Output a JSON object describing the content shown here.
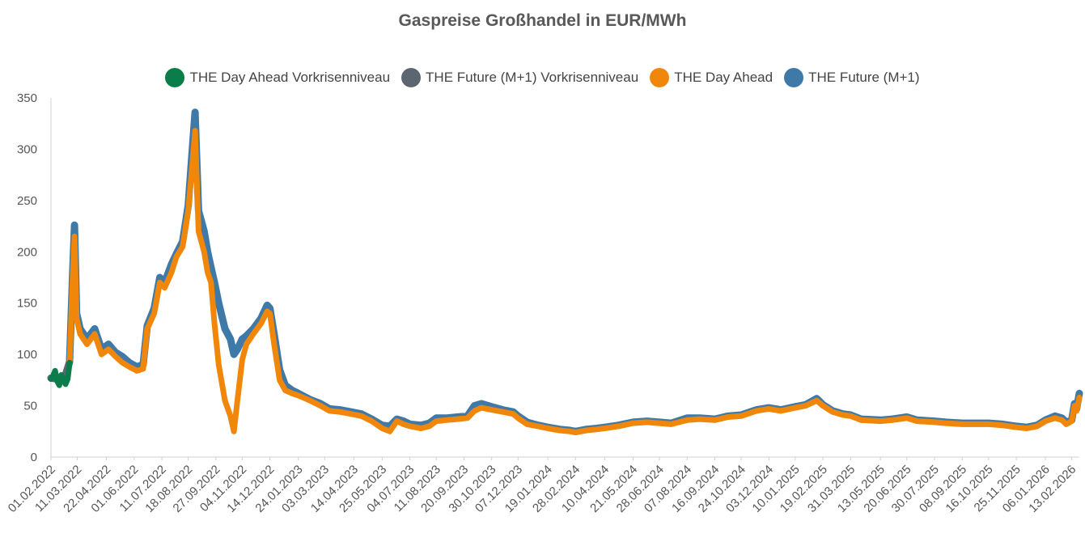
{
  "chart_data": {
    "type": "area",
    "title": "Gaspreise Großhandel in EUR/MWh",
    "xlabel": "",
    "ylabel": "",
    "ylim": [
      0,
      350
    ],
    "yticks": [
      0,
      50,
      100,
      150,
      200,
      250,
      300,
      350
    ],
    "x_range": [
      "2022-02-01",
      "2026-02-24"
    ],
    "xticks": [
      "01.02.2022",
      "11.03.2022",
      "22.04.2022",
      "01.06.2022",
      "11.07.2022",
      "18.08.2022",
      "27.09.2022",
      "04.11.2022",
      "14.12.2022",
      "24.01.2023",
      "03.03.2023",
      "14.04.2023",
      "25.05.2023",
      "04.07.2023",
      "11.08.2023",
      "20.09.2023",
      "30.10.2023",
      "07.12.2023",
      "19.01.2024",
      "28.02.2024",
      "10.04.2024",
      "21.05.2024",
      "28.06.2024",
      "07.08.2024",
      "16.09.2024",
      "24.10.2024",
      "03.12.2024",
      "10.01.2025",
      "19.02.2025",
      "31.03.2025",
      "13.05.2025",
      "20.06.2025",
      "30.07.2025",
      "08.09.2025",
      "16.10.2025",
      "25.11.2025",
      "06.01.2026",
      "13.02.2026"
    ],
    "legend_position": "top",
    "grid": false,
    "series": [
      {
        "name": "THE Day Ahead Vorkrisenniveau",
        "color": "#0a7d4a",
        "points": [
          [
            "2022-02-01",
            76
          ],
          [
            "2022-02-04",
            79
          ],
          [
            "2022-02-07",
            84
          ],
          [
            "2022-02-10",
            74
          ],
          [
            "2022-02-13",
            70
          ],
          [
            "2022-02-16",
            80
          ],
          [
            "2022-02-19",
            75
          ],
          [
            "2022-02-22",
            71
          ],
          [
            "2022-02-25",
            76
          ],
          [
            "2022-02-28",
            92
          ]
        ]
      },
      {
        "name": "THE Future (M+1) Vorkrisenniveau",
        "color": "#5b6670",
        "points": [
          [
            "2022-02-01",
            77
          ],
          [
            "2022-02-10",
            76
          ],
          [
            "2022-02-20",
            76
          ],
          [
            "2022-02-28",
            93
          ]
        ]
      },
      {
        "name": "THE Day Ahead",
        "color": "#f0870a",
        "points": [
          [
            "2022-02-28",
            92
          ],
          [
            "2022-03-04",
            170
          ],
          [
            "2022-03-07",
            215
          ],
          [
            "2022-03-10",
            135
          ],
          [
            "2022-03-15",
            120
          ],
          [
            "2022-03-25",
            110
          ],
          [
            "2022-04-05",
            120
          ],
          [
            "2022-04-15",
            100
          ],
          [
            "2022-04-25",
            105
          ],
          [
            "2022-05-05",
            98
          ],
          [
            "2022-05-15",
            92
          ],
          [
            "2022-05-25",
            88
          ],
          [
            "2022-06-05",
            84
          ],
          [
            "2022-06-14",
            86
          ],
          [
            "2022-06-20",
            125
          ],
          [
            "2022-06-30",
            140
          ],
          [
            "2022-07-08",
            170
          ],
          [
            "2022-07-15",
            165
          ],
          [
            "2022-07-25",
            180
          ],
          [
            "2022-08-01",
            195
          ],
          [
            "2022-08-10",
            205
          ],
          [
            "2022-08-18",
            240
          ],
          [
            "2022-08-24",
            285
          ],
          [
            "2022-08-28",
            318
          ],
          [
            "2022-09-02",
            220
          ],
          [
            "2022-09-10",
            200
          ],
          [
            "2022-09-15",
            180
          ],
          [
            "2022-09-20",
            170
          ],
          [
            "2022-09-25",
            130
          ],
          [
            "2022-10-01",
            90
          ],
          [
            "2022-10-10",
            55
          ],
          [
            "2022-10-18",
            40
          ],
          [
            "2022-10-23",
            25
          ],
          [
            "2022-10-28",
            55
          ],
          [
            "2022-11-04",
            95
          ],
          [
            "2022-11-10",
            110
          ],
          [
            "2022-11-20",
            120
          ],
          [
            "2022-12-01",
            130
          ],
          [
            "2022-12-10",
            142
          ],
          [
            "2022-12-14",
            140
          ],
          [
            "2022-12-20",
            110
          ],
          [
            "2022-12-28",
            75
          ],
          [
            "2023-01-05",
            65
          ],
          [
            "2023-01-15",
            62
          ],
          [
            "2023-01-24",
            60
          ],
          [
            "2023-02-10",
            55
          ],
          [
            "2023-02-25",
            50
          ],
          [
            "2023-03-10",
            45
          ],
          [
            "2023-03-25",
            44
          ],
          [
            "2023-04-10",
            42
          ],
          [
            "2023-04-25",
            40
          ],
          [
            "2023-05-10",
            35
          ],
          [
            "2023-05-25",
            28
          ],
          [
            "2023-06-05",
            25
          ],
          [
            "2023-06-15",
            35
          ],
          [
            "2023-06-25",
            32
          ],
          [
            "2023-07-04",
            30
          ],
          [
            "2023-07-20",
            28
          ],
          [
            "2023-08-01",
            30
          ],
          [
            "2023-08-11",
            35
          ],
          [
            "2023-08-25",
            36
          ],
          [
            "2023-09-10",
            37
          ],
          [
            "2023-09-25",
            38
          ],
          [
            "2023-10-05",
            45
          ],
          [
            "2023-10-15",
            48
          ],
          [
            "2023-10-30",
            46
          ],
          [
            "2023-11-15",
            44
          ],
          [
            "2023-11-30",
            42
          ],
          [
            "2023-12-07",
            38
          ],
          [
            "2023-12-20",
            32
          ],
          [
            "2024-01-05",
            30
          ],
          [
            "2024-01-19",
            28
          ],
          [
            "2024-02-05",
            26
          ],
          [
            "2024-02-20",
            25
          ],
          [
            "2024-02-28",
            24
          ],
          [
            "2024-03-15",
            26
          ],
          [
            "2024-03-30",
            27
          ],
          [
            "2024-04-10",
            28
          ],
          [
            "2024-04-30",
            30
          ],
          [
            "2024-05-21",
            33
          ],
          [
            "2024-06-10",
            34
          ],
          [
            "2024-06-28",
            33
          ],
          [
            "2024-07-15",
            32
          ],
          [
            "2024-08-07",
            36
          ],
          [
            "2024-08-25",
            37
          ],
          [
            "2024-09-16",
            36
          ],
          [
            "2024-10-05",
            39
          ],
          [
            "2024-10-24",
            40
          ],
          [
            "2024-11-15",
            45
          ],
          [
            "2024-12-03",
            47
          ],
          [
            "2024-12-20",
            45
          ],
          [
            "2025-01-10",
            48
          ],
          [
            "2025-01-25",
            50
          ],
          [
            "2025-02-10",
            55
          ],
          [
            "2025-02-19",
            50
          ],
          [
            "2025-03-05",
            44
          ],
          [
            "2025-03-20",
            41
          ],
          [
            "2025-03-31",
            40
          ],
          [
            "2025-04-15",
            36
          ],
          [
            "2025-05-13",
            35
          ],
          [
            "2025-05-30",
            36
          ],
          [
            "2025-06-20",
            38
          ],
          [
            "2025-07-05",
            35
          ],
          [
            "2025-07-30",
            34
          ],
          [
            "2025-08-15",
            33
          ],
          [
            "2025-09-08",
            32
          ],
          [
            "2025-09-25",
            32
          ],
          [
            "2025-10-16",
            32
          ],
          [
            "2025-11-05",
            31
          ],
          [
            "2025-11-25",
            29
          ],
          [
            "2025-12-10",
            28
          ],
          [
            "2025-12-25",
            30
          ],
          [
            "2026-01-06",
            35
          ],
          [
            "2026-01-20",
            38
          ],
          [
            "2026-01-30",
            36
          ],
          [
            "2026-02-05",
            32
          ],
          [
            "2026-02-13",
            35
          ],
          [
            "2026-02-17",
            50
          ],
          [
            "2026-02-20",
            45
          ],
          [
            "2026-02-24",
            58
          ]
        ]
      },
      {
        "name": "THE Future (M+1)",
        "color": "#3e79a8",
        "points": [
          [
            "2022-02-28",
            95
          ],
          [
            "2022-03-04",
            175
          ],
          [
            "2022-03-07",
            226
          ],
          [
            "2022-03-10",
            140
          ],
          [
            "2022-03-15",
            125
          ],
          [
            "2022-03-25",
            115
          ],
          [
            "2022-04-05",
            125
          ],
          [
            "2022-04-15",
            105
          ],
          [
            "2022-04-25",
            110
          ],
          [
            "2022-05-05",
            102
          ],
          [
            "2022-05-15",
            98
          ],
          [
            "2022-05-25",
            92
          ],
          [
            "2022-06-05",
            88
          ],
          [
            "2022-06-14",
            90
          ],
          [
            "2022-06-20",
            128
          ],
          [
            "2022-06-30",
            145
          ],
          [
            "2022-07-08",
            175
          ],
          [
            "2022-07-15",
            170
          ],
          [
            "2022-07-25",
            188
          ],
          [
            "2022-08-01",
            198
          ],
          [
            "2022-08-10",
            210
          ],
          [
            "2022-08-18",
            245
          ],
          [
            "2022-08-24",
            300
          ],
          [
            "2022-08-28",
            336
          ],
          [
            "2022-09-02",
            240
          ],
          [
            "2022-09-10",
            220
          ],
          [
            "2022-09-15",
            200
          ],
          [
            "2022-09-20",
            185
          ],
          [
            "2022-09-25",
            170
          ],
          [
            "2022-10-01",
            150
          ],
          [
            "2022-10-10",
            125
          ],
          [
            "2022-10-18",
            115
          ],
          [
            "2022-10-23",
            100
          ],
          [
            "2022-10-28",
            105
          ],
          [
            "2022-11-04",
            115
          ],
          [
            "2022-11-10",
            118
          ],
          [
            "2022-11-20",
            125
          ],
          [
            "2022-12-01",
            135
          ],
          [
            "2022-12-10",
            148
          ],
          [
            "2022-12-14",
            145
          ],
          [
            "2022-12-20",
            120
          ],
          [
            "2022-12-28",
            85
          ],
          [
            "2023-01-05",
            70
          ],
          [
            "2023-01-15",
            65
          ],
          [
            "2023-01-24",
            62
          ],
          [
            "2023-02-10",
            56
          ],
          [
            "2023-02-25",
            52
          ],
          [
            "2023-03-10",
            47
          ],
          [
            "2023-03-25",
            46
          ],
          [
            "2023-04-10",
            44
          ],
          [
            "2023-04-25",
            42
          ],
          [
            "2023-05-10",
            37
          ],
          [
            "2023-05-25",
            31
          ],
          [
            "2023-06-05",
            30
          ],
          [
            "2023-06-15",
            37
          ],
          [
            "2023-06-25",
            35
          ],
          [
            "2023-07-04",
            32
          ],
          [
            "2023-07-20",
            31
          ],
          [
            "2023-08-01",
            33
          ],
          [
            "2023-08-11",
            38
          ],
          [
            "2023-08-25",
            38
          ],
          [
            "2023-09-10",
            39
          ],
          [
            "2023-09-25",
            40
          ],
          [
            "2023-10-05",
            50
          ],
          [
            "2023-10-15",
            52
          ],
          [
            "2023-10-30",
            49
          ],
          [
            "2023-11-15",
            46
          ],
          [
            "2023-11-30",
            44
          ],
          [
            "2023-12-07",
            40
          ],
          [
            "2023-12-20",
            34
          ],
          [
            "2024-01-05",
            31
          ],
          [
            "2024-01-19",
            29
          ],
          [
            "2024-02-05",
            27
          ],
          [
            "2024-02-20",
            26
          ],
          [
            "2024-02-28",
            25
          ],
          [
            "2024-03-15",
            27
          ],
          [
            "2024-03-30",
            28
          ],
          [
            "2024-04-10",
            29
          ],
          [
            "2024-04-30",
            31
          ],
          [
            "2024-05-21",
            34
          ],
          [
            "2024-06-10",
            35
          ],
          [
            "2024-06-28",
            34
          ],
          [
            "2024-07-15",
            33
          ],
          [
            "2024-08-07",
            38
          ],
          [
            "2024-08-25",
            38
          ],
          [
            "2024-09-16",
            37
          ],
          [
            "2024-10-05",
            40
          ],
          [
            "2024-10-24",
            41
          ],
          [
            "2024-11-15",
            46
          ],
          [
            "2024-12-03",
            48
          ],
          [
            "2024-12-20",
            46
          ],
          [
            "2025-01-10",
            49
          ],
          [
            "2025-01-25",
            51
          ],
          [
            "2025-02-10",
            57
          ],
          [
            "2025-02-19",
            51
          ],
          [
            "2025-03-05",
            45
          ],
          [
            "2025-03-20",
            42
          ],
          [
            "2025-03-31",
            41
          ],
          [
            "2025-04-15",
            37
          ],
          [
            "2025-05-13",
            36
          ],
          [
            "2025-05-30",
            37
          ],
          [
            "2025-06-20",
            39
          ],
          [
            "2025-07-05",
            36
          ],
          [
            "2025-07-30",
            35
          ],
          [
            "2025-08-15",
            34
          ],
          [
            "2025-09-08",
            33
          ],
          [
            "2025-09-25",
            33
          ],
          [
            "2025-10-16",
            33
          ],
          [
            "2025-11-05",
            32
          ],
          [
            "2025-11-25",
            30
          ],
          [
            "2025-12-10",
            29
          ],
          [
            "2025-12-25",
            31
          ],
          [
            "2026-01-06",
            36
          ],
          [
            "2026-01-20",
            40
          ],
          [
            "2026-01-30",
            38
          ],
          [
            "2026-02-05",
            34
          ],
          [
            "2026-02-13",
            36
          ],
          [
            "2026-02-17",
            52
          ],
          [
            "2026-02-20",
            47
          ],
          [
            "2026-02-24",
            62
          ]
        ]
      }
    ]
  }
}
